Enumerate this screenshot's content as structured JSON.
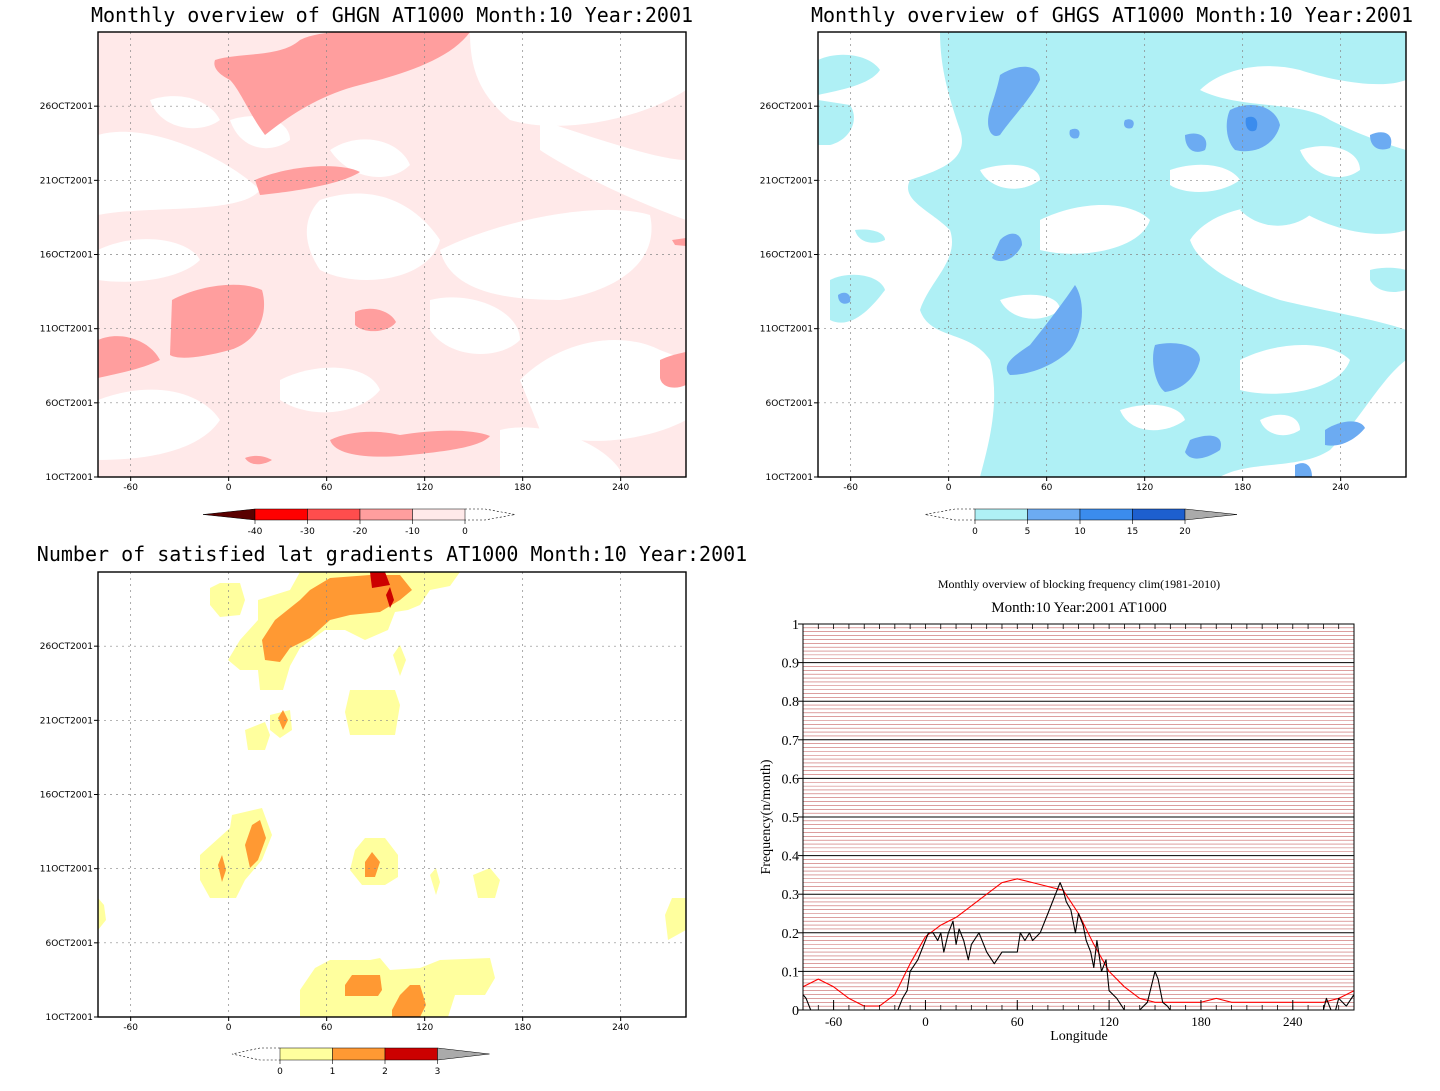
{
  "panels": {
    "ghgn": {
      "title": "Monthly overview of GHGN AT1000 Month:10 Year:2001",
      "x_ticks": [
        "-60",
        "0",
        "60",
        "120",
        "180",
        "240"
      ],
      "y_ticks": [
        "1OCT2001",
        "6OCT2001",
        "11OCT2001",
        "16OCT2001",
        "21OCT2001",
        "26OCT2001"
      ],
      "colorbar_labels": [
        "-40",
        "-30",
        "-20",
        "-10",
        "0"
      ],
      "colors": [
        "#5a0000",
        "#ff0000",
        "#ff4d4d",
        "#ff9e9e",
        "#ffe9e9"
      ]
    },
    "ghgs": {
      "title": "Monthly overview of GHGS AT1000 Month:10 Year:2001",
      "x_ticks": [
        "-60",
        "0",
        "60",
        "120",
        "180",
        "240"
      ],
      "y_ticks": [
        "1OCT2001",
        "6OCT2001",
        "11OCT2001",
        "16OCT2001",
        "21OCT2001",
        "26OCT2001"
      ],
      "colorbar_labels": [
        "0",
        "5",
        "10",
        "15",
        "20"
      ],
      "colors": [
        "#aff0f5",
        "#6cabf2",
        "#3b8ced",
        "#1d5fcf",
        "#aaaaaa"
      ]
    },
    "lat_grad": {
      "title": "Number of satisfied lat gradients AT1000 Month:10 Year:2001",
      "x_ticks": [
        "-60",
        "0",
        "60",
        "120",
        "180",
        "240"
      ],
      "y_ticks": [
        "1OCT2001",
        "6OCT2001",
        "11OCT2001",
        "16OCT2001",
        "21OCT2001",
        "26OCT2001"
      ],
      "colorbar_labels": [
        "0",
        "1",
        "2",
        "3"
      ],
      "colors": [
        "#ffff9e",
        "#ff9933",
        "#cc0000",
        "#aaaaaa"
      ]
    }
  },
  "chart_data": [
    {
      "type": "heatmap",
      "title": "Monthly overview of GHGN AT1000 Month:10 Year:2001",
      "x_ticks": [
        -60,
        0,
        60,
        120,
        180,
        240
      ],
      "xlim": [
        -80,
        280
      ],
      "y_ticks": [
        "1OCT2001",
        "6OCT2001",
        "11OCT2001",
        "16OCT2001",
        "21OCT2001",
        "26OCT2001"
      ],
      "colorbar_levels": [
        -40,
        -30,
        -20,
        -10,
        0
      ],
      "grid": true
    },
    {
      "type": "heatmap",
      "title": "Monthly overview of GHGS AT1000 Month:10 Year:2001",
      "x_ticks": [
        -60,
        0,
        60,
        120,
        180,
        240
      ],
      "xlim": [
        -80,
        280
      ],
      "y_ticks": [
        "1OCT2001",
        "6OCT2001",
        "11OCT2001",
        "16OCT2001",
        "21OCT2001",
        "26OCT2001"
      ],
      "colorbar_levels": [
        0,
        5,
        10,
        15,
        20
      ],
      "grid": true
    },
    {
      "type": "heatmap",
      "title": "Number of satisfied lat gradients AT1000 Month:10 Year:2001",
      "x_ticks": [
        -60,
        0,
        60,
        120,
        180,
        240
      ],
      "xlim": [
        -80,
        280
      ],
      "y_ticks": [
        "1OCT2001",
        "6OCT2001",
        "11OCT2001",
        "16OCT2001",
        "21OCT2001",
        "26OCT2001"
      ],
      "colorbar_levels": [
        0,
        1,
        2,
        3
      ],
      "grid": true
    },
    {
      "type": "line",
      "title": "Monthly overview of blocking frequency clim(1981-2010)",
      "subtitle": "Month:10 Year:2001  AT1000",
      "xlabel": "Longitude",
      "ylabel": "Frequency(n/month)",
      "xlim": [
        -80,
        280
      ],
      "ylim": [
        0,
        1
      ],
      "x_ticks": [
        -60,
        0,
        60,
        120,
        180,
        240
      ],
      "y_ticks": [
        "0",
        "0.1",
        "0.2",
        "0.3",
        "0.4",
        "0.5",
        "0.6",
        "0.7",
        "0.8",
        "0.9",
        "1"
      ],
      "series": [
        {
          "color": "#ff0000",
          "x": [
            -80,
            -70,
            -60,
            -50,
            -40,
            -30,
            -20,
            -10,
            0,
            10,
            20,
            30,
            40,
            50,
            60,
            70,
            80,
            90,
            100,
            110,
            120,
            130,
            140,
            150,
            160,
            170,
            180,
            190,
            200,
            210,
            220,
            230,
            240,
            250,
            260,
            270,
            280
          ],
          "values": [
            0.06,
            0.08,
            0.06,
            0.03,
            0.01,
            0.01,
            0.04,
            0.12,
            0.19,
            0.22,
            0.24,
            0.27,
            0.3,
            0.33,
            0.34,
            0.33,
            0.32,
            0.31,
            0.25,
            0.17,
            0.1,
            0.06,
            0.03,
            0.02,
            0.02,
            0.02,
            0.02,
            0.03,
            0.02,
            0.02,
            0.02,
            0.02,
            0.02,
            0.02,
            0.02,
            0.03,
            0.05
          ]
        },
        {
          "color": "#000000",
          "x": [
            -80,
            -78,
            -75,
            -70,
            -60,
            -50,
            -40,
            -30,
            -20,
            -18,
            -15,
            -12,
            -10,
            -5,
            0,
            2,
            5,
            8,
            10,
            12,
            15,
            18,
            20,
            22,
            25,
            28,
            30,
            35,
            40,
            45,
            50,
            55,
            60,
            62,
            65,
            68,
            70,
            75,
            80,
            85,
            88,
            90,
            92,
            95,
            98,
            100,
            103,
            105,
            108,
            110,
            112,
            115,
            118,
            120,
            125,
            130,
            135,
            140,
            145,
            150,
            152,
            155,
            158,
            160,
            165,
            170,
            180,
            190,
            200,
            210,
            220,
            230,
            240,
            250,
            255,
            260,
            262,
            265,
            268,
            270,
            275,
            280
          ],
          "values": [
            0.04,
            0.03,
            0.0,
            0.0,
            0.0,
            0.0,
            0.0,
            0.0,
            0.0,
            0.0,
            0.03,
            0.05,
            0.1,
            0.13,
            0.18,
            0.2,
            0.2,
            0.18,
            0.2,
            0.15,
            0.2,
            0.23,
            0.17,
            0.21,
            0.18,
            0.13,
            0.17,
            0.2,
            0.15,
            0.12,
            0.15,
            0.15,
            0.15,
            0.2,
            0.18,
            0.2,
            0.18,
            0.2,
            0.25,
            0.3,
            0.33,
            0.31,
            0.28,
            0.26,
            0.2,
            0.25,
            0.22,
            0.18,
            0.15,
            0.11,
            0.18,
            0.1,
            0.13,
            0.05,
            0.03,
            0.0,
            0.0,
            0.0,
            0.02,
            0.1,
            0.08,
            0.02,
            0.01,
            0.0,
            0.0,
            0.0,
            0.0,
            0.0,
            0.0,
            0.0,
            0.0,
            0.0,
            0.0,
            0.0,
            0.0,
            0.0,
            0.03,
            0.0,
            0.0,
            0.03,
            0.01,
            0.04
          ]
        }
      ]
    }
  ],
  "blocking": {
    "title": "Monthly overview of blocking frequency clim(1981-2010)",
    "subtitle": "Month:10 Year:2001  AT1000",
    "xlabel": "Longitude",
    "ylabel": "Frequency(n/month)",
    "x_ticks": [
      "-60",
      "0",
      "60",
      "120",
      "180",
      "240"
    ],
    "y_ticks": [
      "0",
      "0.1",
      "0.2",
      "0.3",
      "0.4",
      "0.5",
      "0.6",
      "0.7",
      "0.8",
      "0.9",
      "1"
    ]
  }
}
